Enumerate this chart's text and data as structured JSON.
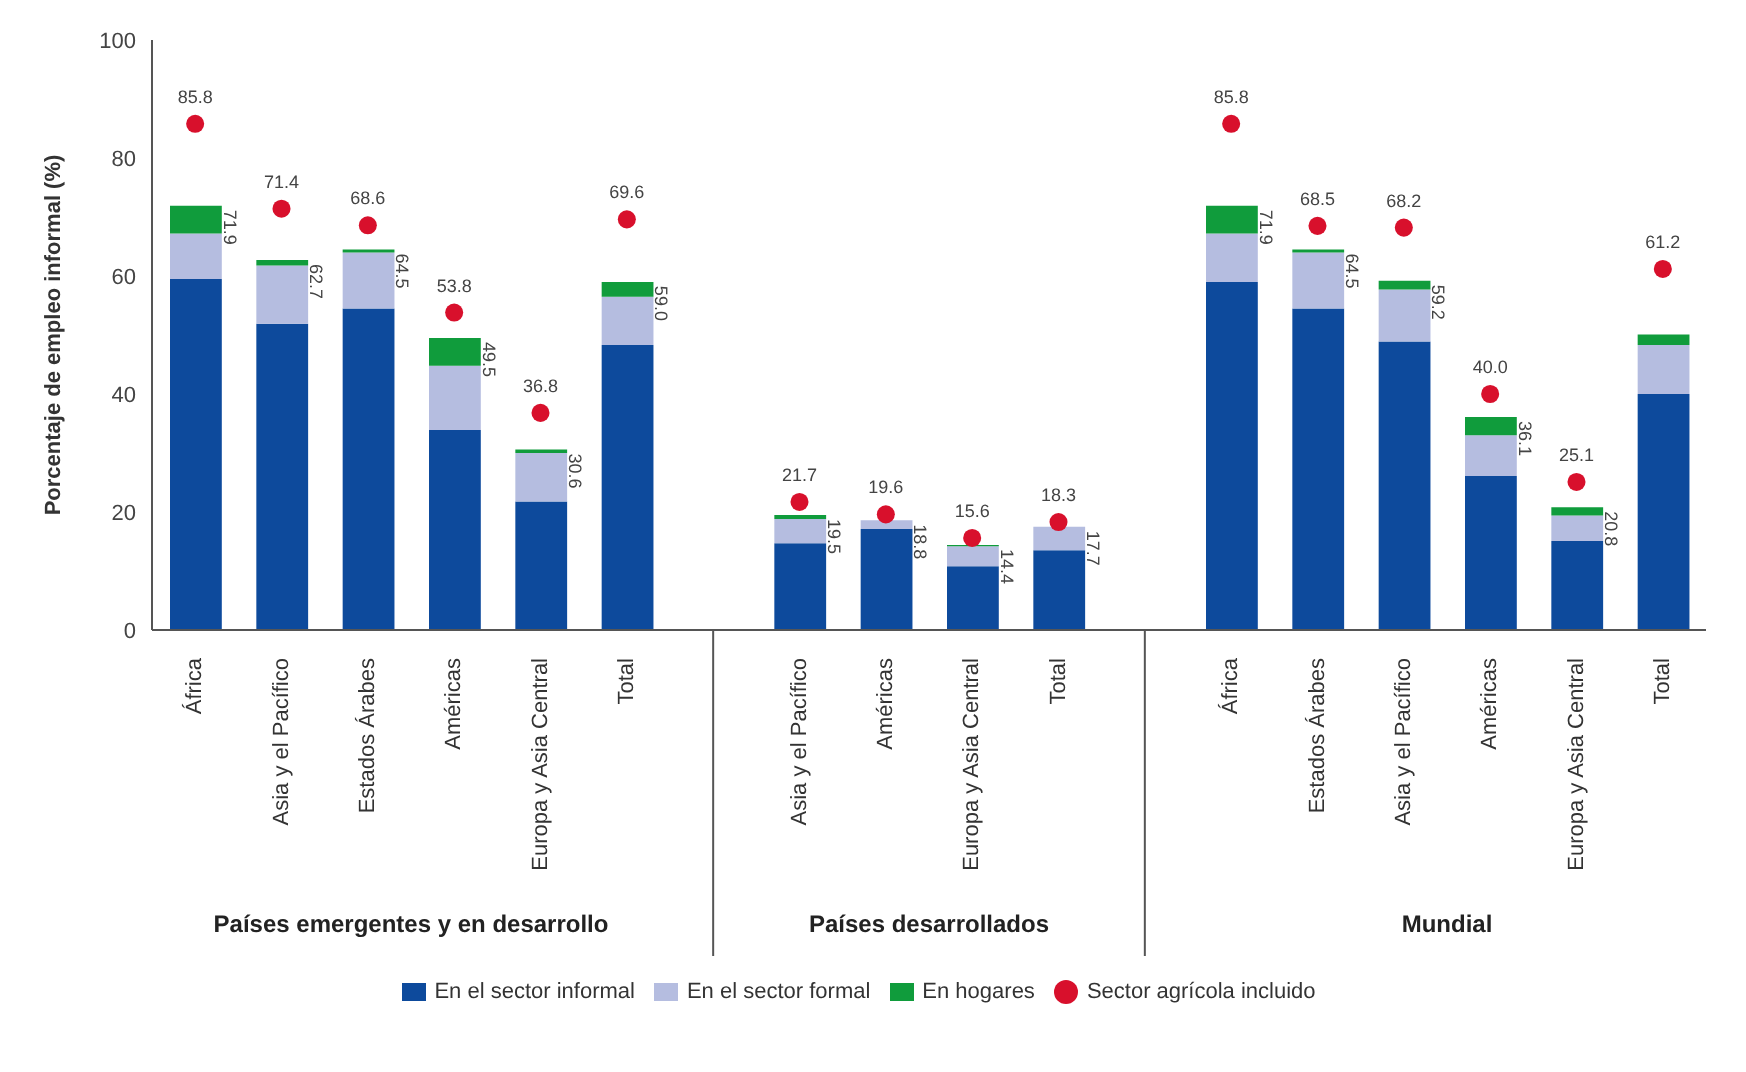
{
  "chart_data": {
    "type": "bar",
    "stacked": true,
    "ylabel": "Porcentaje de empleo informal (%)",
    "categories": [
      "África",
      "Asia y el Pacífico",
      "Estados Árabes",
      "Américas",
      "Europa y Asia Central",
      "Total",
      null,
      "Asia y el Pacífico",
      "Américas",
      "Europa y Asia Central",
      "Total",
      null,
      "África",
      "Estados Árabes",
      "Asia y el Pacífico",
      "Américas",
      "Europa y Asia Central",
      "Total"
    ],
    "series": [
      {
        "name": "En el sector informal",
        "color": "#0d4a9c",
        "values": [
          59.5,
          51.9,
          54.5,
          33.9,
          21.8,
          48.3,
          null,
          14.7,
          17.1,
          10.8,
          13.5,
          null,
          59.0,
          54.5,
          48.9,
          26.1,
          15.1,
          40.0
        ]
      },
      {
        "name": "En el sector formal",
        "color": "#b5bde0",
        "values": [
          7.7,
          9.9,
          9.5,
          10.9,
          8.2,
          8.2,
          null,
          4.1,
          1.5,
          3.4,
          4.0,
          null,
          8.2,
          9.5,
          8.8,
          6.9,
          4.3,
          8.3
        ]
      },
      {
        "name": "En hogares",
        "color": "#109c3c",
        "values": [
          4.7,
          0.9,
          0.5,
          4.7,
          0.6,
          2.5,
          null,
          0.7,
          null,
          0.2,
          null,
          null,
          4.7,
          0.5,
          1.5,
          3.1,
          1.4,
          1.8
        ]
      },
      {
        "name": "Sector agrícola incluido",
        "type": "scatter",
        "color": "#d8102c",
        "values": [
          85.8,
          71.4,
          68.6,
          53.8,
          36.8,
          69.6,
          null,
          21.7,
          19.6,
          15.6,
          18.3,
          null,
          85.8,
          68.5,
          68.2,
          40.0,
          25.1,
          61.2
        ],
        "value_labels": [
          "85.8",
          "71.4",
          "68.6",
          "53.8",
          "36.8",
          "69.6",
          null,
          "21.7",
          "19.6",
          "15.6",
          "18.3",
          null,
          "85.8",
          "68.5",
          "68.2",
          "40.0",
          "25.1",
          "61.2"
        ]
      }
    ],
    "totals": [
      "71.9",
      "62.7",
      "64.5",
      "49.5",
      "30.6",
      "59.0",
      null,
      "19.5",
      "18.8",
      "14.4",
      "17.7",
      null,
      "71.9",
      "64.5",
      "59.2",
      "36.1",
      "20.8",
      null
    ],
    "annotations": [
      "Países emergentes y en desarrollo",
      "Países desarrollados",
      "Mundial"
    ],
    "ylim": [
      0,
      100
    ],
    "yticks": [
      0,
      20,
      40,
      60,
      80,
      100
    ],
    "marker": "circle",
    "legend": "bottom"
  }
}
